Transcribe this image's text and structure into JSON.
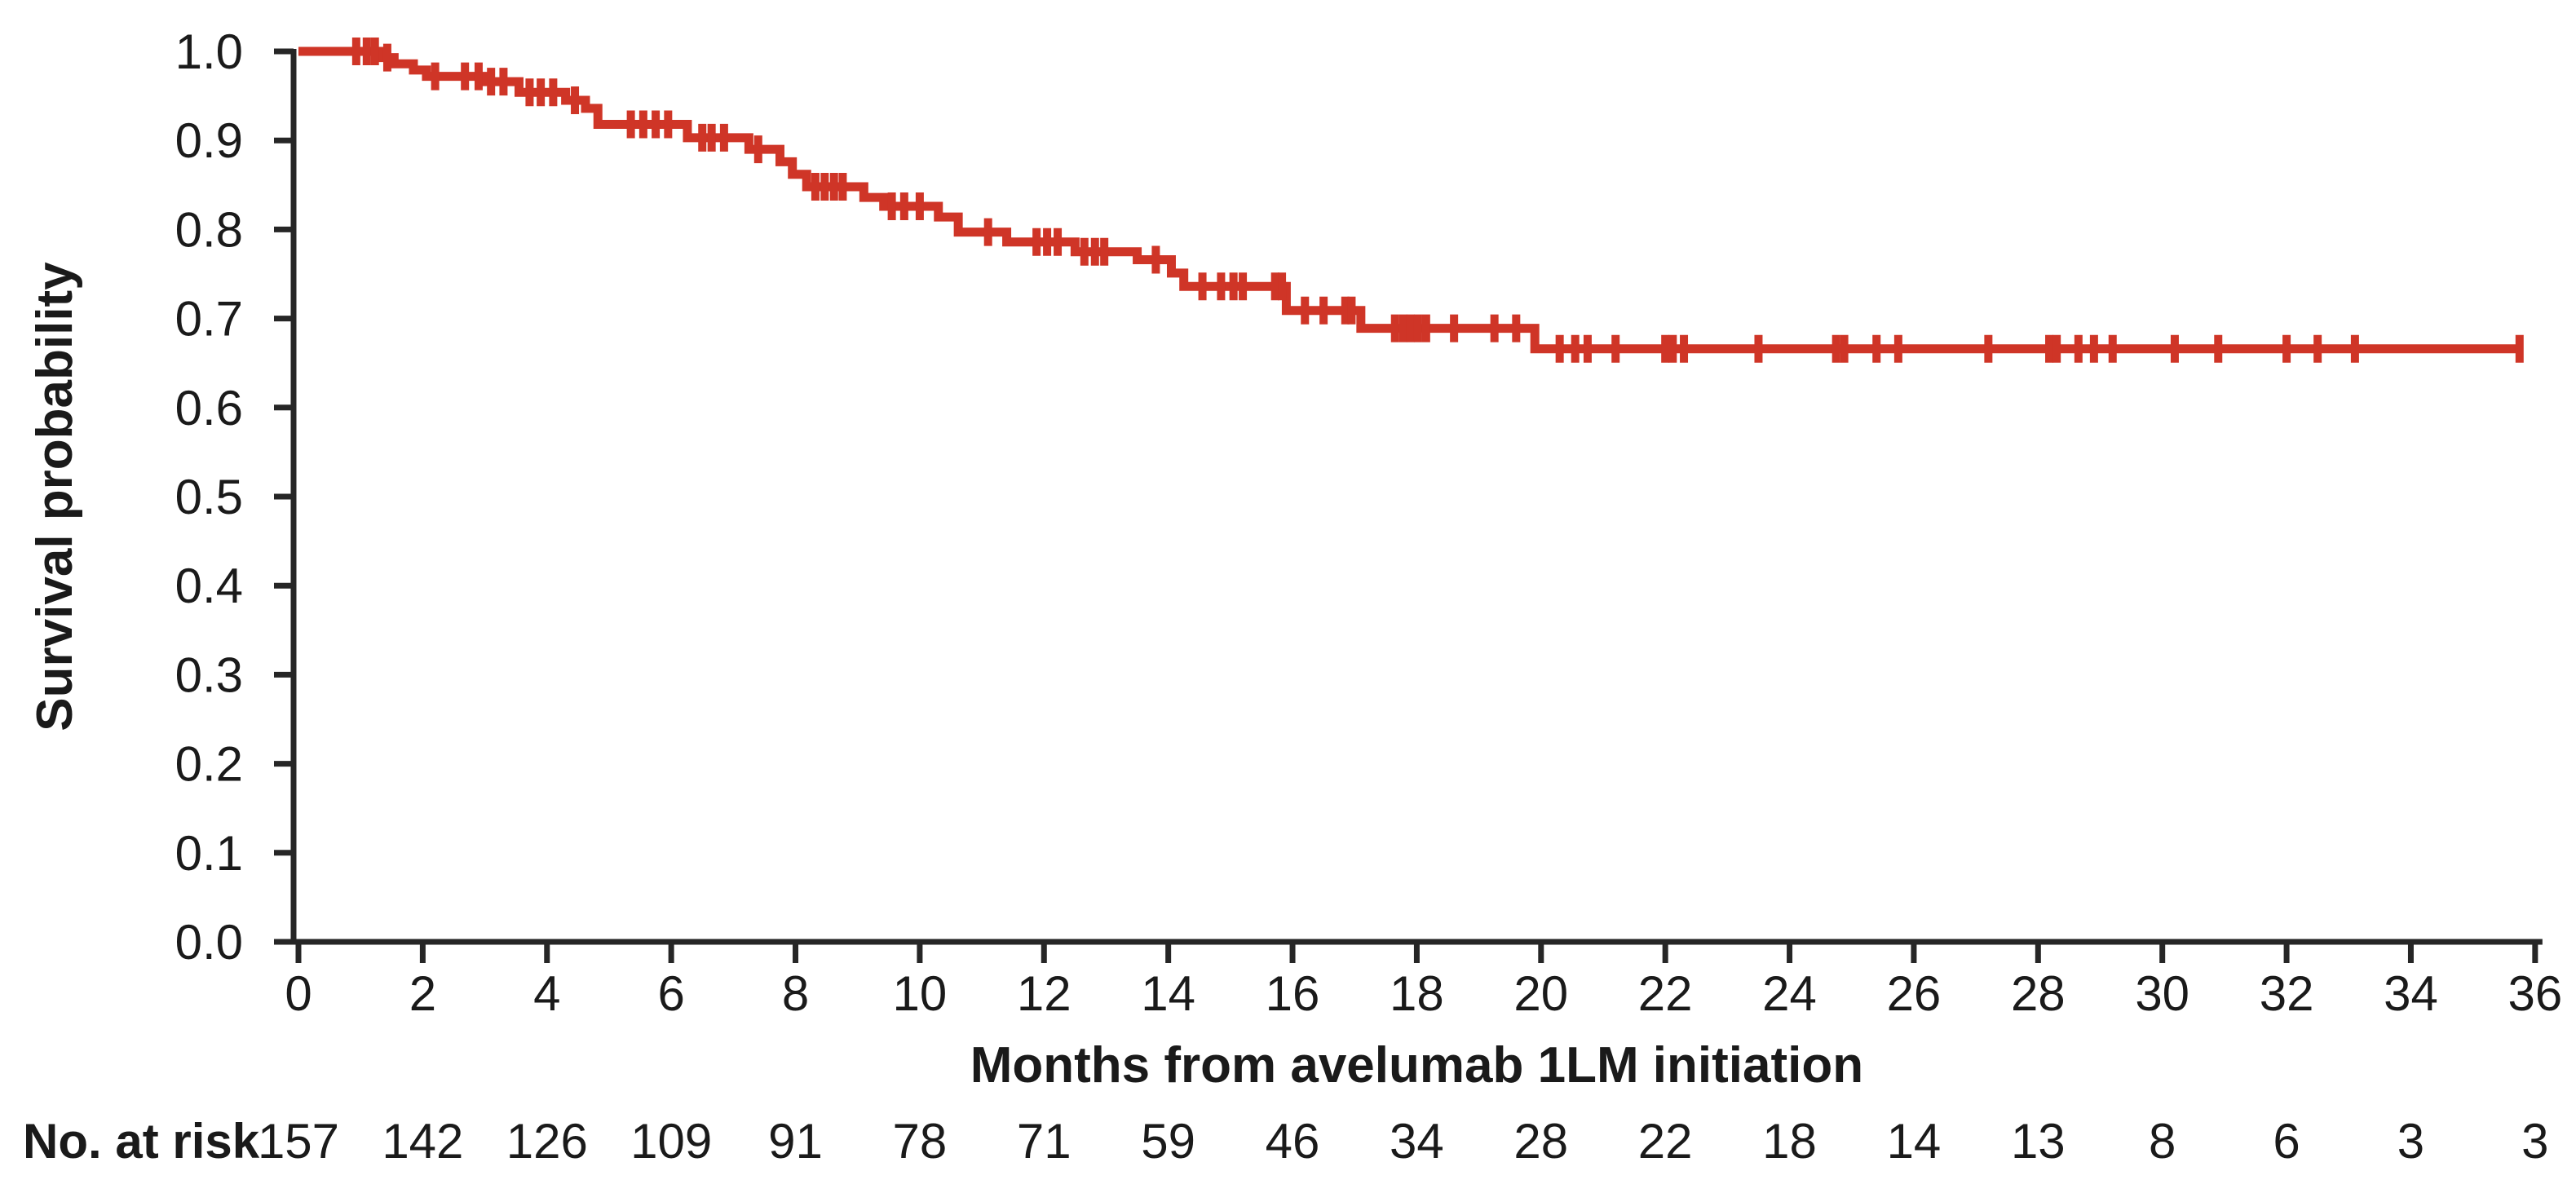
{
  "figure": {
    "background": "#ffffff",
    "curve_color": "#cf3527",
    "axis_color": "#262626",
    "text_color": "#1a1a1a"
  },
  "chart_data": {
    "type": "line",
    "subtype": "kaplan-meier-step",
    "title": "",
    "xlabel": "Months from avelumab 1LM initiation",
    "ylabel": "Survival probability",
    "xlim": [
      0,
      36
    ],
    "ylim": [
      0.0,
      1.0
    ],
    "grid": false,
    "legend": null,
    "x_ticks": [
      {
        "v": 0,
        "label": "0"
      },
      {
        "v": 2,
        "label": "2"
      },
      {
        "v": 4,
        "label": "4"
      },
      {
        "v": 6,
        "label": "6"
      },
      {
        "v": 8,
        "label": "8"
      },
      {
        "v": 10,
        "label": "10"
      },
      {
        "v": 12,
        "label": "12"
      },
      {
        "v": 14,
        "label": "14"
      },
      {
        "v": 16,
        "label": "16"
      },
      {
        "v": 18,
        "label": "18"
      },
      {
        "v": 20,
        "label": "20"
      },
      {
        "v": 22,
        "label": "22"
      },
      {
        "v": 24,
        "label": "24"
      },
      {
        "v": 26,
        "label": "26"
      },
      {
        "v": 28,
        "label": "28"
      },
      {
        "v": 30,
        "label": "30"
      },
      {
        "v": 32,
        "label": "32"
      },
      {
        "v": 34,
        "label": "34"
      },
      {
        "v": 36,
        "label": "36"
      }
    ],
    "y_ticks": [
      {
        "v": 1.0,
        "label": "1.0"
      },
      {
        "v": 0.9,
        "label": "0.9"
      },
      {
        "v": 0.8,
        "label": "0.8"
      },
      {
        "v": 0.7,
        "label": "0.7"
      },
      {
        "v": 0.6,
        "label": "0.6"
      },
      {
        "v": 0.5,
        "label": "0.5"
      },
      {
        "v": 0.4,
        "label": "0.4"
      },
      {
        "v": 0.3,
        "label": "0.3"
      },
      {
        "v": 0.2,
        "label": "0.2"
      },
      {
        "v": 0.1,
        "label": "0.1"
      },
      {
        "v": 0.0,
        "label": "0.0"
      }
    ],
    "series": [
      {
        "name": "avelumab 1LM",
        "color": "#cf3527",
        "curve_end_month": 35.8,
        "steps": [
          [
            0,
            1.0
          ],
          [
            1.32,
            0.993
          ],
          [
            1.54,
            0.986
          ],
          [
            1.85,
            0.979
          ],
          [
            2.06,
            0.972
          ],
          [
            2.98,
            0.966
          ],
          [
            3.55,
            0.954
          ],
          [
            4.3,
            0.945
          ],
          [
            4.62,
            0.936
          ],
          [
            4.82,
            0.918
          ],
          [
            6.26,
            0.903
          ],
          [
            7.25,
            0.89
          ],
          [
            7.75,
            0.876
          ],
          [
            7.95,
            0.862
          ],
          [
            8.18,
            0.848
          ],
          [
            9.1,
            0.836
          ],
          [
            9.42,
            0.826
          ],
          [
            10.3,
            0.814
          ],
          [
            10.62,
            0.797
          ],
          [
            11.4,
            0.786
          ],
          [
            12.5,
            0.775
          ],
          [
            13.5,
            0.766
          ],
          [
            14.05,
            0.751
          ],
          [
            14.25,
            0.736
          ],
          [
            15.9,
            0.709
          ],
          [
            17.1,
            0.689
          ],
          [
            19.9,
            0.666
          ]
        ],
        "censor_marks": [
          [
            0.93,
            1.0
          ],
          [
            1.1,
            1.0
          ],
          [
            1.23,
            1.0
          ],
          [
            1.43,
            0.993
          ],
          [
            2.2,
            0.972
          ],
          [
            2.68,
            0.972
          ],
          [
            2.9,
            0.972
          ],
          [
            3.1,
            0.966
          ],
          [
            3.3,
            0.966
          ],
          [
            3.72,
            0.954
          ],
          [
            3.9,
            0.954
          ],
          [
            4.1,
            0.954
          ],
          [
            4.45,
            0.945
          ],
          [
            5.35,
            0.918
          ],
          [
            5.55,
            0.918
          ],
          [
            5.75,
            0.918
          ],
          [
            5.95,
            0.918
          ],
          [
            6.5,
            0.903
          ],
          [
            6.65,
            0.903
          ],
          [
            6.85,
            0.903
          ],
          [
            7.4,
            0.89
          ],
          [
            8.32,
            0.848
          ],
          [
            8.47,
            0.848
          ],
          [
            8.62,
            0.848
          ],
          [
            8.76,
            0.848
          ],
          [
            9.55,
            0.826
          ],
          [
            9.75,
            0.826
          ],
          [
            10.0,
            0.826
          ],
          [
            11.1,
            0.797
          ],
          [
            11.88,
            0.786
          ],
          [
            12.05,
            0.786
          ],
          [
            12.22,
            0.786
          ],
          [
            12.65,
            0.775
          ],
          [
            12.82,
            0.775
          ],
          [
            12.97,
            0.775
          ],
          [
            13.8,
            0.766
          ],
          [
            14.55,
            0.736
          ],
          [
            14.85,
            0.736
          ],
          [
            15.05,
            0.736
          ],
          [
            15.2,
            0.736
          ],
          [
            15.72,
            0.736
          ],
          [
            15.83,
            0.736
          ],
          [
            16.2,
            0.709
          ],
          [
            16.5,
            0.709
          ],
          [
            16.85,
            0.709
          ],
          [
            16.95,
            0.709
          ],
          [
            17.65,
            0.689
          ],
          [
            17.78,
            0.689
          ],
          [
            17.9,
            0.689
          ],
          [
            18.02,
            0.689
          ],
          [
            18.15,
            0.689
          ],
          [
            18.6,
            0.689
          ],
          [
            19.25,
            0.689
          ],
          [
            19.6,
            0.689
          ],
          [
            20.3,
            0.666
          ],
          [
            20.55,
            0.666
          ],
          [
            20.75,
            0.666
          ],
          [
            21.2,
            0.666
          ],
          [
            22.0,
            0.666
          ],
          [
            22.12,
            0.666
          ],
          [
            22.3,
            0.666
          ],
          [
            23.5,
            0.666
          ],
          [
            24.75,
            0.666
          ],
          [
            24.88,
            0.666
          ],
          [
            25.4,
            0.666
          ],
          [
            25.75,
            0.666
          ],
          [
            27.2,
            0.666
          ],
          [
            28.18,
            0.666
          ],
          [
            28.3,
            0.666
          ],
          [
            28.65,
            0.666
          ],
          [
            28.9,
            0.666
          ],
          [
            29.2,
            0.666
          ],
          [
            30.2,
            0.666
          ],
          [
            30.9,
            0.666
          ],
          [
            32.0,
            0.666
          ],
          [
            32.5,
            0.666
          ],
          [
            33.1,
            0.666
          ],
          [
            35.75,
            0.666
          ]
        ]
      }
    ],
    "at_risk": {
      "label": "No. at risk",
      "months": [
        0,
        2,
        4,
        6,
        8,
        10,
        12,
        14,
        16,
        18,
        20,
        22,
        24,
        26,
        28,
        30,
        32,
        34,
        36
      ],
      "values": [
        157,
        142,
        126,
        109,
        91,
        78,
        71,
        59,
        46,
        34,
        28,
        22,
        18,
        14,
        13,
        8,
        6,
        3,
        3
      ]
    }
  }
}
